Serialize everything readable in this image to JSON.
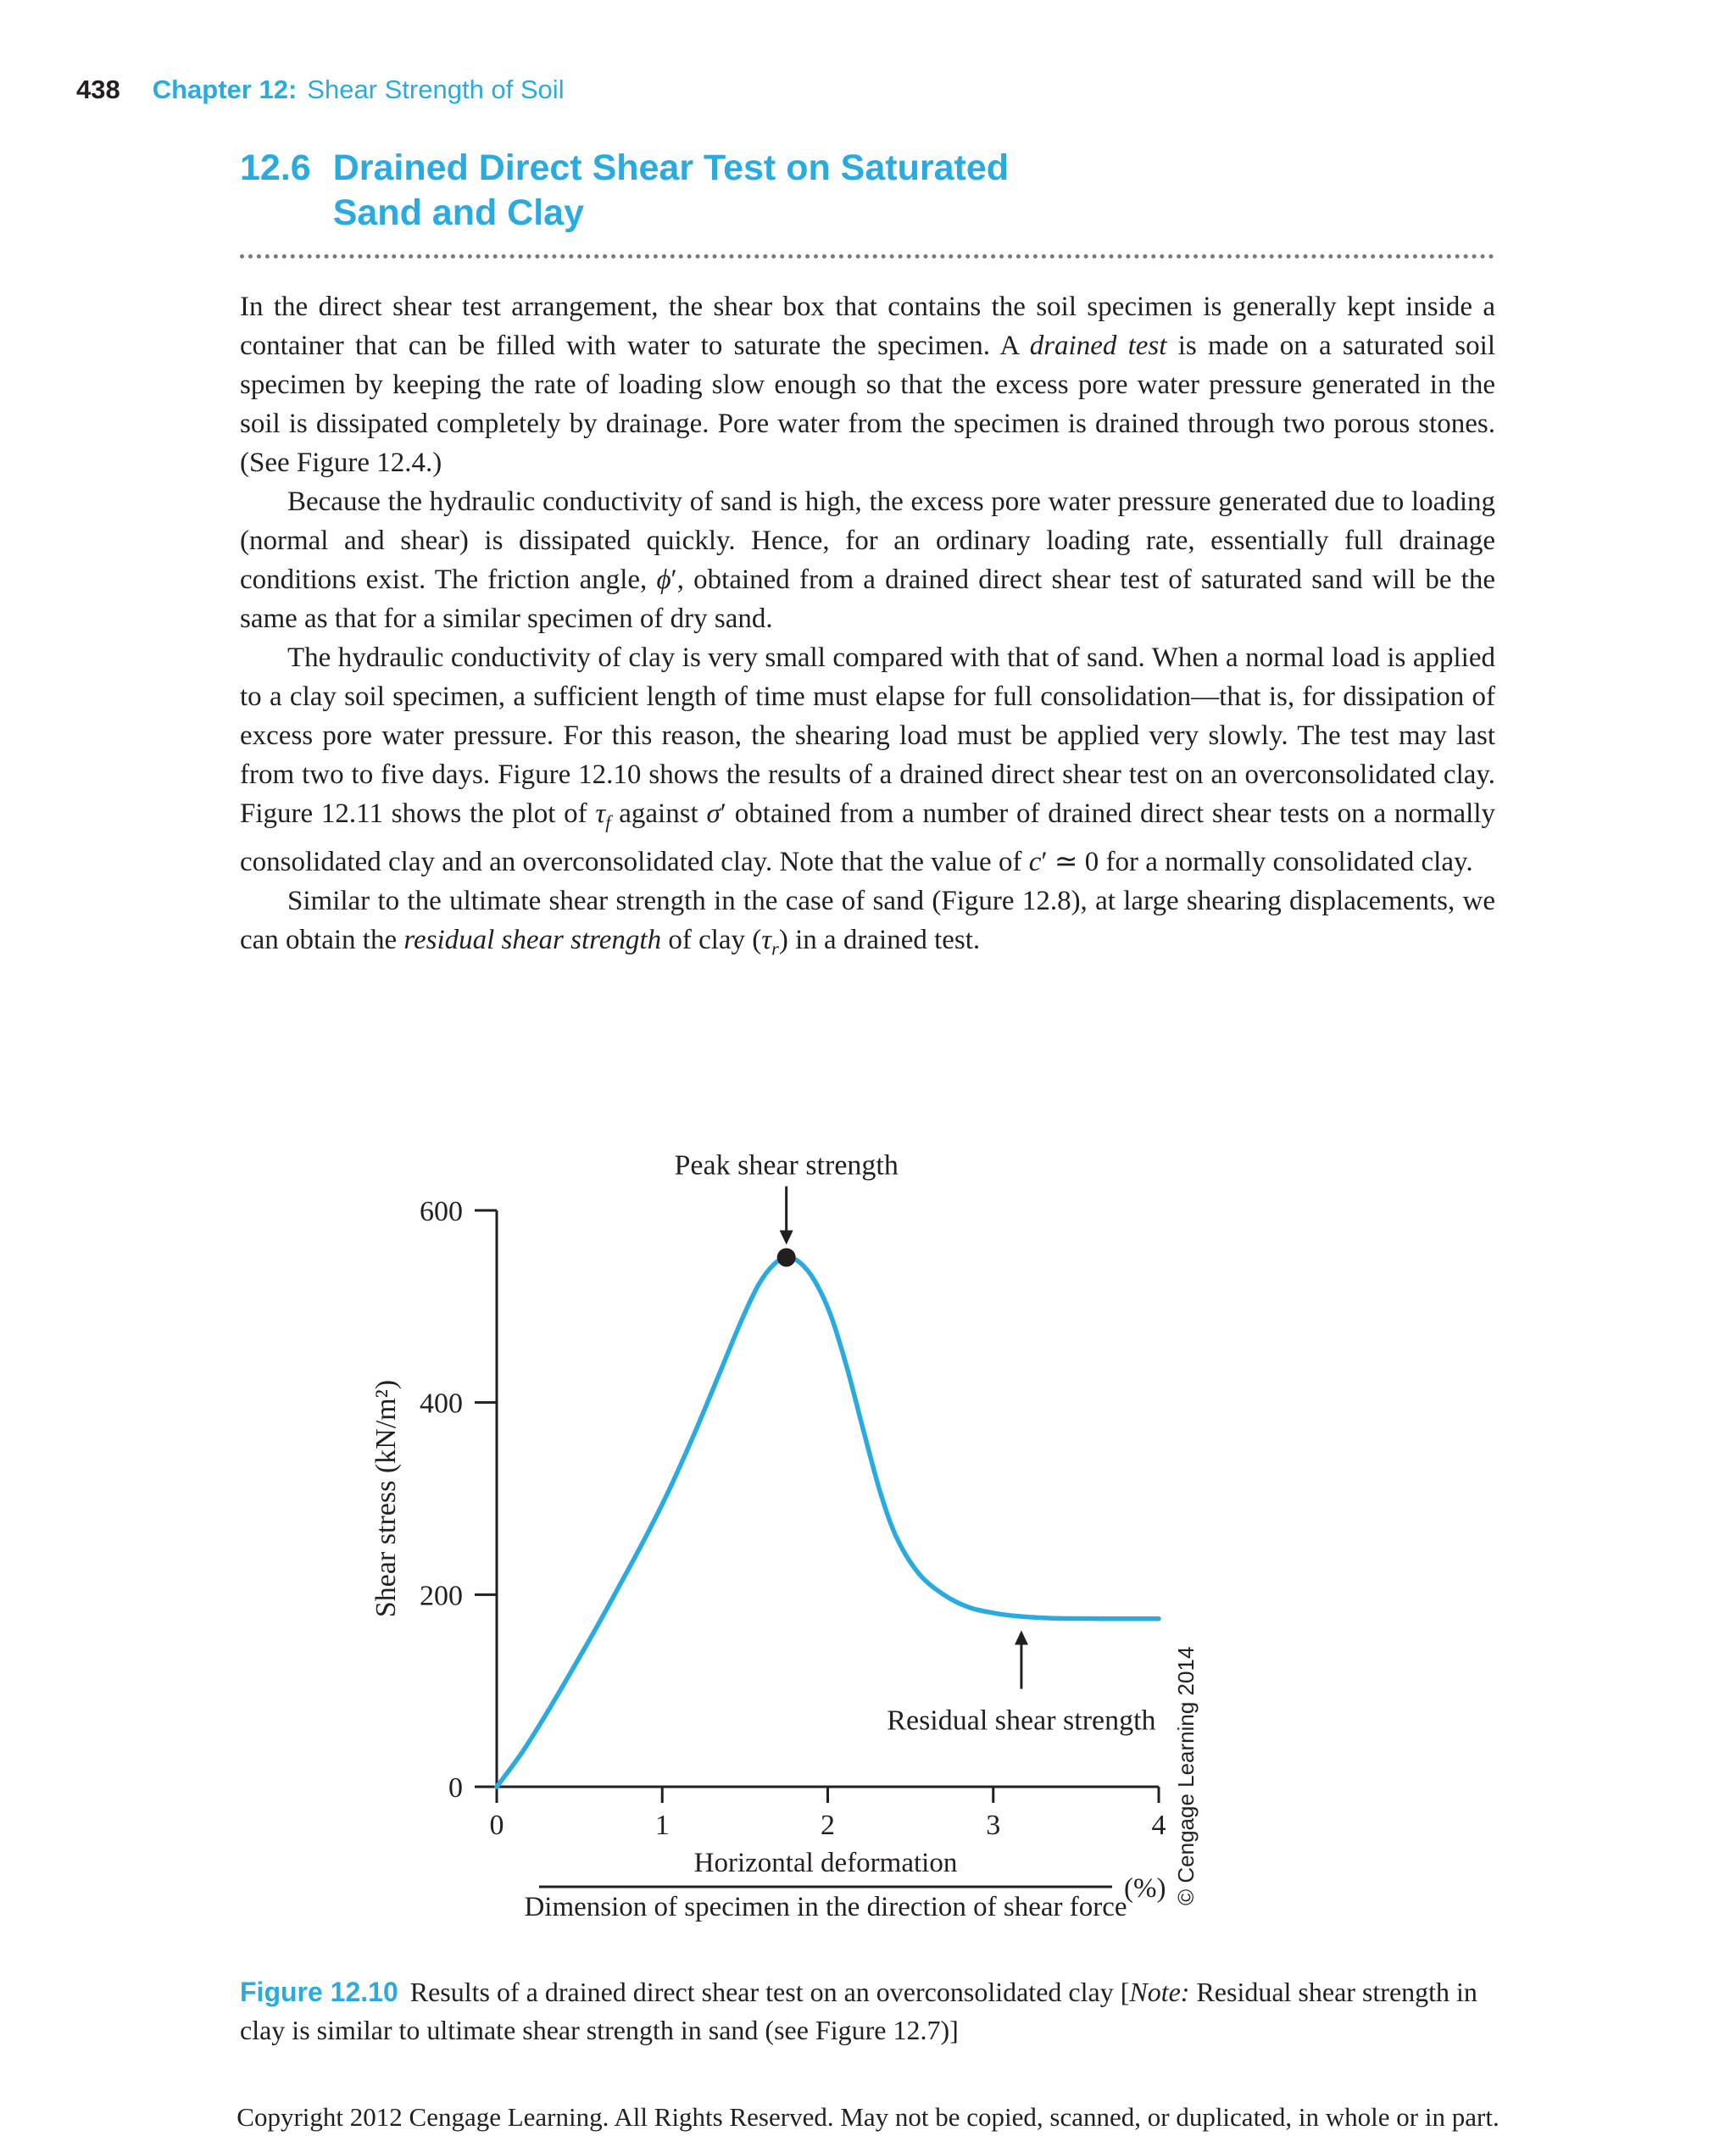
{
  "page": {
    "header": {
      "page_number": "438",
      "chapter_label": "Chapter 12:",
      "chapter_title": "Shear Strength of Soil"
    },
    "section": {
      "number": "12.6",
      "title_line1": "Drained Direct Shear Test on Saturated",
      "title_line2": "Sand and Clay"
    },
    "paragraphs": [
      {
        "html": "In the direct shear test arrangement, the shear box that contains the soil specimen is generally kept inside a container that can be filled with water to saturate the specimen. A <i>drained test</i> is made on a saturated soil specimen by keeping the rate of loading slow enough so that the excess pore water pressure generated in the soil is dissipated completely by drainage. Pore water from the specimen is drained through two porous stones. (See Figure 12.4.)"
      },
      {
        "html": "Because the hydraulic conductivity of sand is high, the excess pore water pressure generated due to loading (normal and shear) is dissipated quickly. Hence, for an ordinary loading rate, essentially full drainage conditions exist. The friction angle, <i>ϕ</i>′, obtained from a drained direct shear test of saturated sand will be the same as that for a similar specimen of dry sand."
      },
      {
        "html": "The hydraulic conductivity of clay is very small compared with that of sand. When a normal load is applied to a clay soil specimen, a sufficient length of time must elapse for full consolidation—that is, for dissipation of excess pore water pressure. For this reason, the shearing load must be applied very slowly. The test may last from two to five days. Figure 12.10 shows the results of a drained direct shear test on an overconsolidated clay. Figure 12.11 shows the plot of <i>τ<sub>f</sub></i> against <i>σ</i>′ obtained from a number of drained direct shear tests on a normally consolidated clay and an overconsolidated clay. Note that the value of <i>c</i>′ ≃ 0 for a normally consolidated clay."
      },
      {
        "html": "Similar to the ultimate shear strength in the case of sand (Figure 12.8), at large shearing displacements, we can obtain the <i>residual shear strength</i> of clay (<i>τ<sub>r</sub></i>) in a drained test."
      }
    ],
    "figure_caption": {
      "label": "Figure 12.10",
      "text_html": "Results of a drained direct shear test on an overconsolidated clay [<i>Note:</i> Residual shear strength in clay is similar to ultimate shear strength in sand (see Figure 12.7)]"
    },
    "footer": "Copyright 2012 Cengage Learning. All Rights Reserved. May not be copied, scanned, or duplicated, in whole or in part.",
    "colors": {
      "accent_blue": "#29abe2",
      "curve_blue": "#29abe2",
      "text_black": "#231f20",
      "rule_gray": "#77787b"
    }
  },
  "chart_data": {
    "type": "line",
    "title": "",
    "ylabel": "Shear stress (kN/m²)",
    "xlabel_numerator": "Horizontal deformation",
    "xlabel_denominator": "Dimension of specimen in the direction of shear force",
    "xlabel_unit": "(%)",
    "xlim": [
      0,
      4
    ],
    "ylim": [
      0,
      600
    ],
    "x_ticks": [
      0,
      1,
      2,
      3,
      4
    ],
    "y_ticks": [
      0,
      200,
      400,
      600
    ],
    "grid": false,
    "legend": "none",
    "series": [
      {
        "name": "Shear stress vs. horizontal deformation (overconsolidated clay)",
        "points": [
          [
            0,
            0
          ],
          [
            0.15,
            35
          ],
          [
            0.3,
            76
          ],
          [
            0.45,
            120
          ],
          [
            0.6,
            165
          ],
          [
            0.75,
            212
          ],
          [
            0.9,
            260
          ],
          [
            1.05,
            312
          ],
          [
            1.2,
            370
          ],
          [
            1.35,
            432
          ],
          [
            1.48,
            486
          ],
          [
            1.58,
            522
          ],
          [
            1.67,
            543
          ],
          [
            1.75,
            551
          ],
          [
            1.83,
            546
          ],
          [
            1.92,
            527
          ],
          [
            2.02,
            490
          ],
          [
            2.12,
            434
          ],
          [
            2.22,
            368
          ],
          [
            2.32,
            305
          ],
          [
            2.42,
            258
          ],
          [
            2.55,
            222
          ],
          [
            2.7,
            200
          ],
          [
            2.85,
            187
          ],
          [
            3.0,
            181
          ],
          [
            3.15,
            177.5
          ],
          [
            3.35,
            175.5
          ],
          [
            3.65,
            175
          ],
          [
            4.0,
            175
          ]
        ]
      }
    ],
    "annotations": [
      {
        "label": "Peak shear strength",
        "x": 1.75,
        "y": 551,
        "marker": "dot",
        "arrow": "down"
      },
      {
        "label": "Residual shear strength",
        "x": 3.17,
        "y": 176,
        "marker": "none",
        "arrow": "up"
      }
    ],
    "peak_shear_strength": 551,
    "residual_shear_strength": 175,
    "credit": "© Cengage Learning 2014"
  }
}
